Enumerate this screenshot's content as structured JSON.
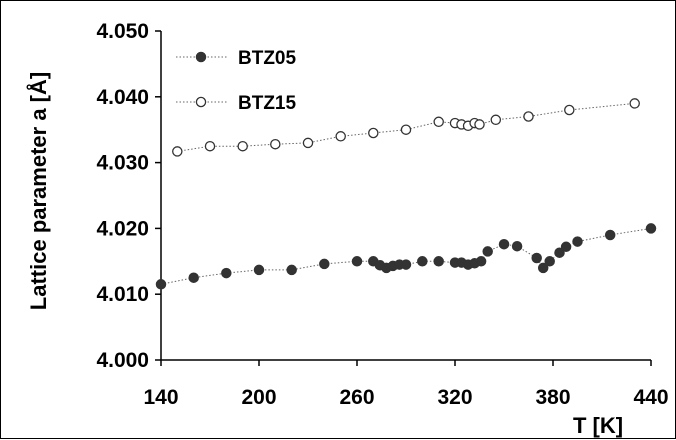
{
  "chart_data": {
    "type": "line",
    "xlabel": "T [K]",
    "ylabel": "Lattice parameter a [Å]",
    "xlim": [
      140,
      440
    ],
    "ylim": [
      4.0,
      4.05
    ],
    "xticks": [
      "140",
      "200",
      "260",
      "320",
      "380",
      "440"
    ],
    "yticks": [
      "4.000",
      "4.010",
      "4.020",
      "4.030",
      "4.040",
      "4.050"
    ],
    "grid": false,
    "legend_position": "top-left",
    "series": [
      {
        "name": "BTZ05",
        "marker": "filled-circle",
        "color": "#333333",
        "x": [
          140,
          160,
          180,
          200,
          220,
          240,
          260,
          270,
          274,
          278,
          282,
          286,
          290,
          300,
          310,
          320,
          324,
          328,
          332,
          336,
          340,
          350,
          358,
          370,
          374,
          378,
          384,
          388,
          395,
          415,
          440
        ],
        "y": [
          4.0115,
          4.0125,
          4.0132,
          4.0137,
          4.0137,
          4.0146,
          4.015,
          4.015,
          4.0144,
          4.014,
          4.0143,
          4.0145,
          4.0145,
          4.015,
          4.015,
          4.0148,
          4.0148,
          4.0145,
          4.0147,
          4.015,
          4.0165,
          4.0176,
          4.0173,
          4.0155,
          4.014,
          4.015,
          4.0163,
          4.0172,
          4.018,
          4.019,
          4.02
        ]
      },
      {
        "name": "BTZ15",
        "marker": "open-circle",
        "color": "#333333",
        "x": [
          150,
          170,
          190,
          210,
          230,
          250,
          270,
          290,
          310,
          320,
          324,
          328,
          332,
          335,
          345,
          365,
          390,
          430
        ],
        "y": [
          4.0317,
          4.0325,
          4.0325,
          4.0328,
          4.033,
          4.034,
          4.0345,
          4.035,
          4.0362,
          4.036,
          4.0358,
          4.0356,
          4.036,
          4.0358,
          4.0365,
          4.037,
          4.038,
          4.039
        ]
      }
    ]
  }
}
